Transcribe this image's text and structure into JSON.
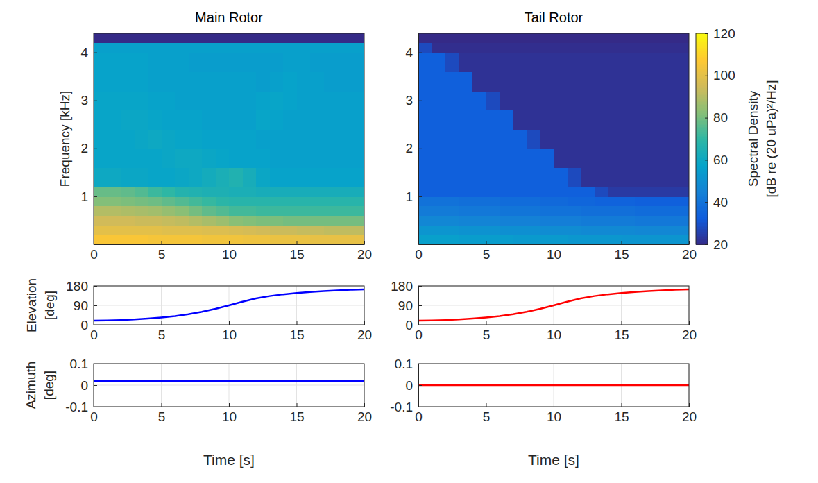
{
  "chart_data": [
    {
      "type": "heatmap",
      "title": "Main Rotor",
      "y_label": "Frequency [kHz]",
      "xlim": [
        0,
        20
      ],
      "xticks": [
        0,
        5,
        10,
        15,
        20
      ],
      "ylim": [
        0,
        4.4
      ],
      "yticks": [
        1,
        2,
        3,
        4
      ],
      "x_bins": [
        0,
        1,
        2,
        3,
        4,
        5,
        6,
        7,
        8,
        9,
        10,
        11,
        12,
        13,
        14,
        15,
        16,
        17,
        18,
        19,
        20
      ],
      "y_bins": [
        0,
        0.2,
        0.4,
        0.6,
        0.8,
        1,
        1.2,
        1.6,
        2,
        2.4,
        2.8,
        3.2,
        3.6,
        4,
        4.2,
        4.4
      ],
      "values": [
        [
          106,
          106,
          106,
          106,
          105,
          105,
          105,
          105,
          104,
          104,
          104,
          103,
          103,
          102,
          102,
          102,
          101,
          101,
          101,
          101
        ],
        [
          100,
          100,
          100,
          100,
          100,
          99,
          99,
          99,
          98,
          98,
          97,
          96,
          95,
          94,
          94,
          93,
          93,
          92,
          92,
          92
        ],
        [
          95,
          95,
          95,
          94,
          94,
          93,
          92,
          90,
          88,
          86,
          83,
          82,
          81,
          81,
          80,
          80,
          80,
          80,
          80,
          80
        ],
        [
          90,
          90,
          89,
          88,
          87,
          85,
          83,
          80,
          77,
          75,
          73,
          73,
          72,
          72,
          72,
          72,
          72,
          72,
          72,
          72
        ],
        [
          82,
          82,
          81,
          80,
          79,
          77,
          75,
          73,
          71,
          69,
          68,
          68,
          68,
          68,
          68,
          68,
          68,
          68,
          68,
          68
        ],
        [
          78,
          78,
          77,
          75,
          72,
          70,
          67,
          66,
          65,
          65,
          64,
          64,
          63,
          63,
          63,
          63,
          63,
          63,
          63,
          63
        ],
        [
          60,
          60,
          59,
          59,
          58,
          58,
          59,
          60,
          62,
          64,
          66,
          63,
          59,
          57,
          57,
          57,
          57,
          57,
          57,
          57
        ],
        [
          58,
          58,
          58,
          58,
          58,
          59,
          60,
          60,
          59,
          58,
          57,
          57,
          57,
          56,
          56,
          56,
          56,
          56,
          56,
          56
        ],
        [
          58,
          58,
          58,
          59,
          60,
          59,
          58,
          58,
          57,
          57,
          57,
          57,
          56,
          56,
          56,
          56,
          56,
          56,
          56,
          56
        ],
        [
          58,
          58,
          59,
          59,
          58,
          57,
          57,
          57,
          56,
          56,
          56,
          56,
          58,
          57,
          56,
          56,
          56,
          56,
          56,
          56
        ],
        [
          58,
          58,
          58,
          58,
          57,
          57,
          56,
          56,
          56,
          56,
          56,
          56,
          57,
          58,
          57,
          56,
          56,
          56,
          56,
          56
        ],
        [
          57,
          57,
          57,
          57,
          56,
          56,
          56,
          56,
          56,
          56,
          56,
          56,
          55,
          56,
          57,
          56,
          56,
          55,
          55,
          55
        ],
        [
          57,
          57,
          57,
          57,
          56,
          56,
          56,
          55,
          55,
          55,
          55,
          55,
          55,
          55,
          56,
          56,
          55,
          55,
          55,
          55
        ],
        [
          56,
          56,
          56,
          56,
          56,
          56,
          56,
          56,
          56,
          56,
          56,
          56,
          56,
          56,
          56,
          56,
          56,
          56,
          56,
          56
        ],
        [
          20,
          20,
          20,
          20,
          20,
          20,
          20,
          20,
          20,
          20,
          20,
          20,
          20,
          20,
          20,
          20,
          20,
          20,
          20,
          20
        ]
      ],
      "colorbar": {
        "label": "Spectral Density [dB re (20 uPa)²/Hz]",
        "range": [
          20,
          120
        ],
        "ticks": [
          20,
          40,
          60,
          80,
          100,
          120
        ]
      }
    },
    {
      "type": "heatmap",
      "title": "Tail Rotor",
      "xlim": [
        0,
        20
      ],
      "xticks": [
        0,
        5,
        10,
        15,
        20
      ],
      "ylim": [
        0,
        4.4
      ],
      "yticks": [
        1,
        2,
        3,
        4
      ],
      "x_bins": [
        0,
        1,
        2,
        3,
        4,
        5,
        6,
        7,
        8,
        9,
        10,
        11,
        12,
        13,
        14,
        15,
        16,
        17,
        18,
        19,
        20
      ],
      "y_bins": [
        0,
        0.2,
        0.4,
        0.6,
        0.8,
        1,
        1.2,
        1.6,
        2,
        2.4,
        2.8,
        3.2,
        3.6,
        4,
        4.2,
        4.4
      ],
      "values": [
        [
          56,
          56,
          56,
          55,
          55,
          55,
          55,
          54,
          54,
          54,
          54,
          53,
          53,
          53,
          53,
          52,
          52,
          52,
          52,
          52
        ],
        [
          52,
          52,
          52,
          51,
          51,
          51,
          50,
          50,
          50,
          49,
          49,
          49,
          48,
          48,
          48,
          48,
          47,
          47,
          47,
          47
        ],
        [
          47,
          47,
          47,
          46,
          46,
          46,
          45,
          45,
          45,
          44,
          44,
          44,
          43,
          43,
          43,
          43,
          42,
          42,
          42,
          42
        ],
        [
          43,
          43,
          43,
          42,
          42,
          42,
          41,
          41,
          41,
          40,
          40,
          40,
          39,
          39,
          39,
          39,
          38,
          38,
          38,
          38
        ],
        [
          40,
          40,
          40,
          39,
          39,
          39,
          38,
          38,
          38,
          37,
          37,
          36,
          36,
          35,
          35,
          35,
          34,
          34,
          34,
          34
        ],
        [
          34,
          34,
          34,
          34,
          34,
          34,
          34,
          34,
          34,
          34,
          34,
          34,
          34,
          28,
          24,
          24,
          24,
          24,
          24,
          24
        ],
        [
          34,
          34,
          34,
          34,
          34,
          34,
          34,
          34,
          34,
          34,
          34,
          28,
          22,
          22,
          22,
          22,
          22,
          22,
          22,
          22
        ],
        [
          34,
          34,
          34,
          34,
          34,
          34,
          34,
          34,
          34,
          34,
          22,
          22,
          22,
          22,
          22,
          22,
          22,
          22,
          22,
          22
        ],
        [
          34,
          34,
          34,
          34,
          34,
          34,
          34,
          34,
          28,
          22,
          22,
          22,
          22,
          22,
          22,
          22,
          22,
          22,
          22,
          22
        ],
        [
          34,
          34,
          34,
          34,
          34,
          34,
          34,
          22,
          22,
          22,
          22,
          22,
          22,
          22,
          22,
          22,
          22,
          22,
          22,
          22
        ],
        [
          34,
          34,
          34,
          34,
          34,
          28,
          22,
          22,
          22,
          22,
          22,
          22,
          22,
          22,
          22,
          22,
          22,
          22,
          22,
          22
        ],
        [
          34,
          34,
          34,
          34,
          22,
          22,
          22,
          22,
          22,
          22,
          22,
          22,
          22,
          22,
          22,
          22,
          22,
          22,
          22,
          22
        ],
        [
          34,
          34,
          28,
          22,
          22,
          22,
          22,
          22,
          22,
          22,
          22,
          22,
          22,
          22,
          22,
          22,
          22,
          22,
          22,
          22
        ],
        [
          28,
          21,
          21,
          21,
          21,
          21,
          21,
          21,
          21,
          21,
          21,
          21,
          21,
          21,
          21,
          21,
          21,
          21,
          21,
          21
        ],
        [
          20,
          20,
          20,
          20,
          20,
          20,
          20,
          20,
          20,
          20,
          20,
          20,
          20,
          20,
          20,
          20,
          20,
          20,
          20,
          20
        ]
      ]
    },
    {
      "type": "line",
      "y_label": "Elevation [deg]",
      "x": [
        0,
        1,
        2,
        3,
        4,
        5,
        6,
        7,
        8,
        9,
        10,
        11,
        12,
        13,
        14,
        15,
        16,
        17,
        18,
        19,
        20
      ],
      "values": [
        19,
        20,
        22,
        25,
        29,
        34,
        40,
        49,
        60,
        74,
        90,
        107,
        122,
        133,
        141,
        147,
        152,
        156,
        159,
        162,
        164
      ],
      "color": "#0000ff",
      "xlim": [
        0,
        20
      ],
      "xticks": [
        0,
        5,
        10,
        15,
        20
      ],
      "ylim": [
        0,
        180
      ],
      "yticks": [
        0,
        90,
        180
      ],
      "grid": true
    },
    {
      "type": "line",
      "x": [
        0,
        1,
        2,
        3,
        4,
        5,
        6,
        7,
        8,
        9,
        10,
        11,
        12,
        13,
        14,
        15,
        16,
        17,
        18,
        19,
        20
      ],
      "values": [
        19,
        20,
        22,
        25,
        29,
        34,
        40,
        49,
        60,
        74,
        90,
        107,
        122,
        133,
        141,
        147,
        152,
        156,
        159,
        162,
        164
      ],
      "color": "#ff0000",
      "xlim": [
        0,
        20
      ],
      "xticks": [
        0,
        5,
        10,
        15,
        20
      ],
      "ylim": [
        0,
        180
      ],
      "yticks": [
        0,
        90,
        180
      ],
      "grid": true
    },
    {
      "type": "line",
      "y_label": "Azimuth [deg]",
      "x_label": "Time [s]",
      "x": [
        0,
        20
      ],
      "values": [
        0.02,
        0.02
      ],
      "color": "#0000ff",
      "xlim": [
        0,
        20
      ],
      "xticks": [
        0,
        5,
        10,
        15,
        20
      ],
      "ylim": [
        -0.1,
        0.1
      ],
      "yticks": [
        -0.1,
        0,
        0.1
      ],
      "grid": true
    },
    {
      "type": "line",
      "x_label": "Time [s]",
      "x": [
        0,
        20
      ],
      "values": [
        0,
        0
      ],
      "color": "#ff0000",
      "xlim": [
        0,
        20
      ],
      "xticks": [
        0,
        5,
        10,
        15,
        20
      ],
      "ylim": [
        -0.1,
        0.1
      ],
      "yticks": [
        -0.1,
        0,
        0.1
      ],
      "grid": true
    }
  ]
}
